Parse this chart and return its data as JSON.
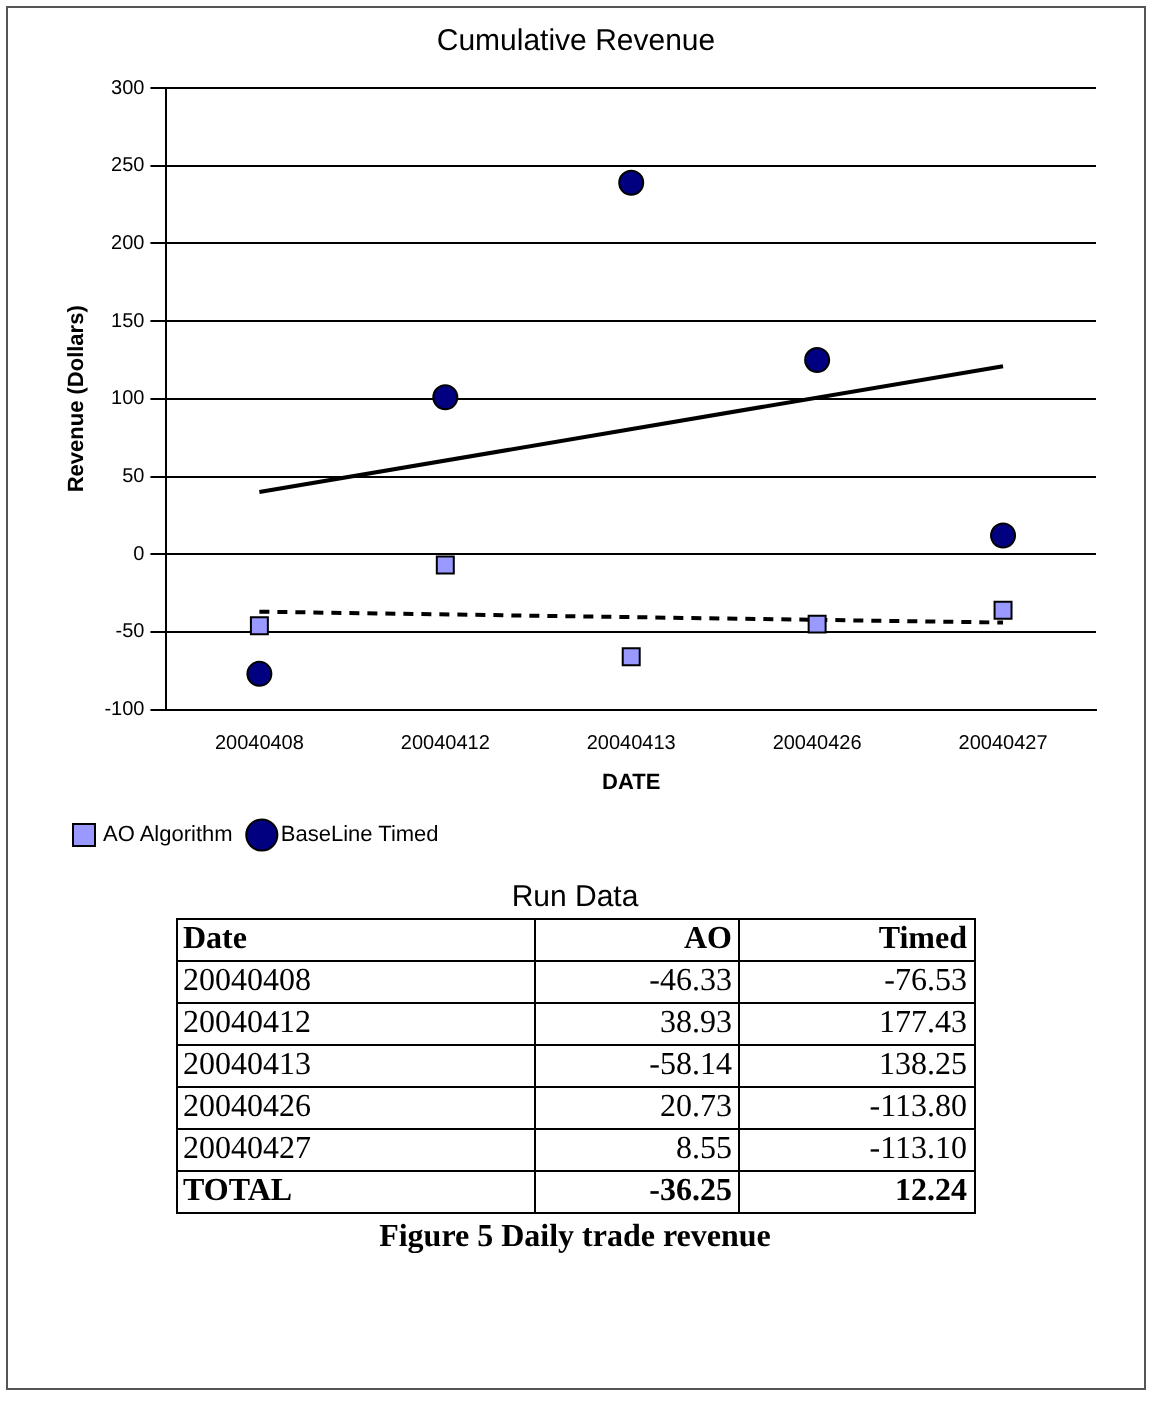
{
  "chart_data": [
    {
      "type": "scatter",
      "title": "Cumulative Revenue",
      "xlabel": "DATE",
      "ylabel": "Revenue (Dollars)",
      "categories": [
        "20040408",
        "20040412",
        "20040413",
        "20040426",
        "20040427"
      ],
      "series": [
        {
          "name": "AO Algorithm",
          "color": "#9999ff",
          "marker": "square",
          "values": [
            -46,
            -7,
            -66,
            -45,
            -36
          ]
        },
        {
          "name": "BaseLine Timed",
          "color": "#000080",
          "marker": "circle",
          "values": [
            -77,
            101,
            239,
            125,
            12
          ]
        },
        {
          "type": "line",
          "color": "#000000",
          "line_style": "dashed",
          "marker": "none",
          "x": [
            "20040408",
            "20040427"
          ],
          "values": [
            -37,
            -44
          ]
        },
        {
          "type": "line",
          "color": "#000000",
          "line_style": "solid",
          "marker": "none",
          "x": [
            "20040408",
            "20040427"
          ],
          "values": [
            40,
            121
          ]
        }
      ],
      "ylim": [
        -100,
        300
      ],
      "yticks": [
        -100,
        -50,
        0,
        50,
        100,
        150,
        200,
        250,
        300
      ],
      "grid": "y",
      "legend": "bottom left"
    },
    {
      "type": "other",
      "title": "Run Data",
      "xlabel": "Date",
      "categories": [
        "20040408",
        "20040412",
        "20040413",
        "20040426",
        "20040427",
        "TOTAL"
      ],
      "series": [
        {
          "name": "AO",
          "values": [
            -46.33,
            38.93,
            -58.14,
            20.73,
            8.55,
            -36.25
          ],
          "value_labels": [
            "-46.33",
            "38.93",
            "-58.14",
            "20.73",
            "8.55",
            "-36.25"
          ]
        },
        {
          "name": "Timed",
          "values": [
            -76.53,
            177.43,
            138.25,
            -113.8,
            -113.1,
            12.24
          ],
          "value_labels": [
            "-76.53",
            "177.43",
            "138.25",
            "-113.80",
            "-113.10",
            "12.24"
          ]
        }
      ],
      "annotations": [
        "Figure 5  Daily trade revenue"
      ]
    }
  ]
}
